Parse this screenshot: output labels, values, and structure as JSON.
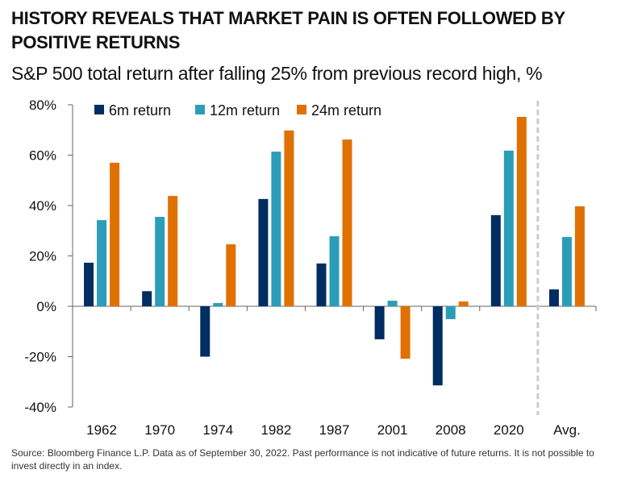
{
  "header": {
    "title": "HISTORY REVEALS THAT MARKET PAIN IS OFTEN FOLLOWED BY POSITIVE RETURNS",
    "subtitle": "S&P 500 total return after falling 25% from previous record high, %"
  },
  "footnote": "Source: Bloomberg Finance L.P. Data as of September 30, 2022. Past performance is not indicative of future returns. It is not possible to invest directly in an index.",
  "chart_data": {
    "type": "bar",
    "title": "S&P 500 total return after falling 25% from previous record high, %",
    "xlabel": "",
    "ylabel": "",
    "categories": [
      "1962",
      "1970",
      "1974",
      "1982",
      "1987",
      "2001",
      "2008",
      "2020",
      "Avg."
    ],
    "series": [
      {
        "name": "6m return",
        "color": "#002d62",
        "values": [
          17.3,
          6.0,
          -20.0,
          42.6,
          17.0,
          -13.1,
          -31.4,
          36.2,
          6.7
        ]
      },
      {
        "name": "12m return",
        "color": "#2b9db8",
        "values": [
          34.2,
          35.5,
          1.3,
          61.4,
          27.8,
          2.2,
          -5.1,
          61.8,
          27.5
        ]
      },
      {
        "name": "24m return",
        "color": "#e07000",
        "values": [
          57.0,
          43.8,
          24.6,
          69.8,
          66.2,
          -20.8,
          1.9,
          75.2,
          39.7
        ]
      }
    ],
    "ylim": [
      -40,
      80
    ],
    "yticks": [
      80,
      60,
      40,
      20,
      0,
      -20,
      -40
    ],
    "ytick_labels": [
      "80%",
      "60%",
      "40%",
      "20%",
      "0%",
      "-20%",
      "-40%"
    ],
    "grid": false,
    "legend": "top-left",
    "separator_before": "Avg.",
    "separator_color": "#cccccc",
    "axis_color": "#666666"
  }
}
